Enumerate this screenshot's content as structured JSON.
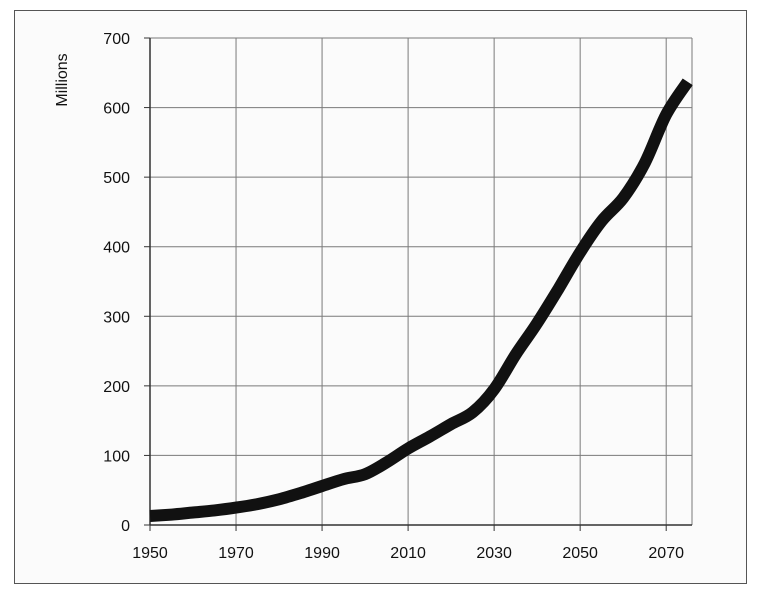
{
  "chart_data": {
    "type": "line",
    "title": "",
    "xlabel": "",
    "ylabel": "Millions",
    "xlim": [
      1950,
      2076
    ],
    "ylim": [
      0,
      700
    ],
    "x_ticks": [
      "1950",
      "1970",
      "1990",
      "2010",
      "2030",
      "2050",
      "2070"
    ],
    "y_ticks": [
      "0",
      "100",
      "200",
      "300",
      "400",
      "500",
      "600",
      "700"
    ],
    "grid": true,
    "legend": "none",
    "series": [
      {
        "color": "#111111",
        "x": [
          1950,
          1955,
          1960,
          1965,
          1970,
          1975,
          1980,
          1985,
          1990,
          1995,
          2000,
          2005,
          2010,
          2015,
          2020,
          2025,
          2030,
          2035,
          2040,
          2045,
          2050,
          2055,
          2060,
          2065,
          2070,
          2075
        ],
        "y": [
          13,
          15,
          18,
          21,
          25,
          30,
          37,
          46,
          56,
          66,
          73,
          90,
          110,
          127,
          145,
          162,
          195,
          245,
          290,
          340,
          392,
          437,
          470,
          520,
          590,
          637
        ]
      }
    ]
  }
}
